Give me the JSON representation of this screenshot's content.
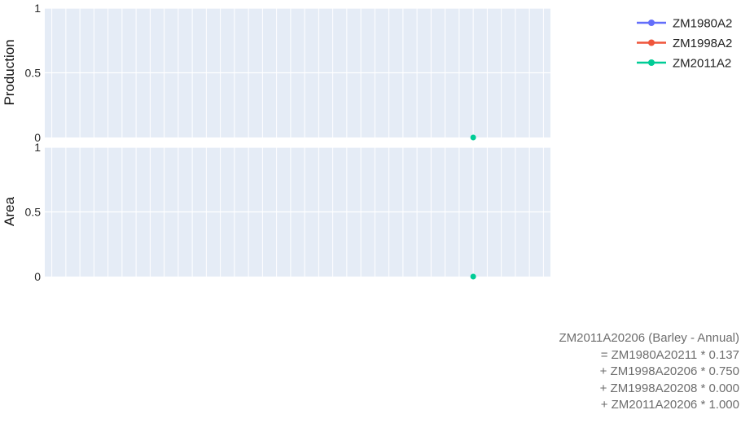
{
  "chart_data": {
    "type": "line",
    "subplots": [
      {
        "ylabel": "Production",
        "ylim": [
          0,
          1
        ],
        "yticks": [
          "0",
          "0.5",
          "1"
        ]
      },
      {
        "ylabel": "Area",
        "ylim": [
          0,
          1
        ],
        "yticks": [
          "0",
          "0.5",
          "1"
        ]
      }
    ],
    "x_count": 36,
    "series": [
      {
        "name": "ZM1980A2",
        "color": "#636efa",
        "points": []
      },
      {
        "name": "ZM1998A2",
        "color": "#ef553b",
        "points": []
      },
      {
        "name": "ZM2011A2",
        "color": "#00cc96",
        "points": [
          {
            "x": 30,
            "y": 0
          }
        ]
      }
    ],
    "grid": true,
    "legend_position": "top-right",
    "plot_background": "#e5ecf6"
  },
  "annotation": {
    "lines": [
      "ZM2011A20206 (Barley - Annual)",
      "= ZM1980A20211 * 0.137",
      "+ ZM1998A20206 * 0.750",
      "+ ZM1998A20208 * 0.000",
      "+ ZM2011A20206 * 1.000"
    ]
  }
}
